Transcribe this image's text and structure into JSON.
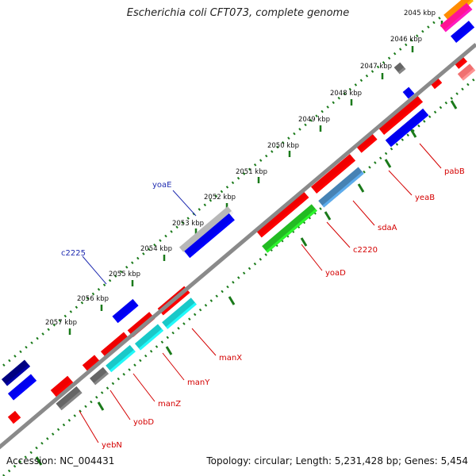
{
  "title": "Escherichia coli CFT073, complete genome",
  "footer": {
    "accession": "Accession: NC_004431",
    "summary": "Topology: circular; Length: 5,231,428 bp; Genes: 5,454"
  },
  "colors": {
    "backbone": "#8a8a8a",
    "tick_dot": "#1a7a1a",
    "label_red": "#d40000",
    "label_blue": "#1f2bb0"
  },
  "ticks": [
    "2045 kbp",
    "2046 kbp",
    "2047 kbp",
    "2048 kbp",
    "2049 kbp",
    "2050 kbp",
    "2051 kbp",
    "2052 kbp",
    "2053 kbp",
    "2054 kbp",
    "2055 kbp",
    "2056 kbp",
    "2057 kbp"
  ],
  "labels": [
    {
      "text": "pabB",
      "strand": "reverse"
    },
    {
      "text": "yeaB",
      "strand": "reverse"
    },
    {
      "text": "sdaA",
      "strand": "reverse"
    },
    {
      "text": "c2220",
      "strand": "reverse"
    },
    {
      "text": "yoaD",
      "strand": "reverse"
    },
    {
      "text": "manX",
      "strand": "reverse"
    },
    {
      "text": "manY",
      "strand": "reverse"
    },
    {
      "text": "manZ",
      "strand": "reverse"
    },
    {
      "text": "yobD",
      "strand": "reverse"
    },
    {
      "text": "yebN",
      "strand": "reverse"
    },
    {
      "text": "yoaE",
      "strand": "forward"
    },
    {
      "text": "c2225",
      "strand": "forward"
    }
  ]
}
